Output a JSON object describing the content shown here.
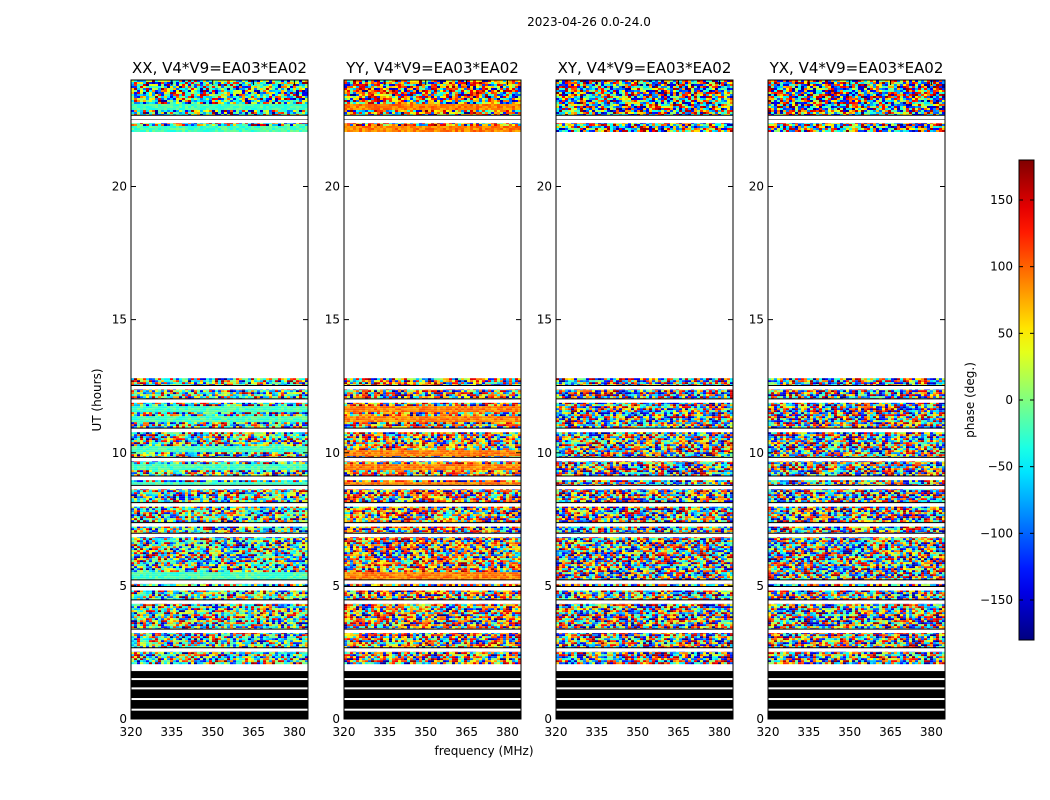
{
  "chart_data": {
    "type": "heatmap",
    "suptitle": "2023-04-26 0.0-24.0",
    "xlabel": "frequency (MHz)",
    "ylabel": "UT (hours)",
    "xlim": [
      320,
      385
    ],
    "ylim": [
      0,
      24
    ],
    "xticks": [
      320,
      335,
      350,
      365,
      380
    ],
    "yticks": [
      0,
      5,
      10,
      15,
      20
    ],
    "panels": [
      {
        "title": "XX, V4*V9=EA03*EA02",
        "bias_phase": -20,
        "coherent_rows": [
          5.4,
          8.8,
          9.5,
          10.2,
          11.3,
          11.7,
          22.2,
          23.0
        ]
      },
      {
        "title": "YY, V4*V9=EA03*EA02",
        "bias_phase": 90,
        "coherent_rows": [
          5.4,
          8.8,
          9.5,
          10.0,
          11.3,
          11.7,
          22.2,
          23.0
        ]
      },
      {
        "title": "XY, V4*V9=EA03*EA02",
        "bias_phase": null,
        "coherent_rows": []
      },
      {
        "title": "YX, V4*V9=EA03*EA02",
        "bias_phase": null,
        "coherent_rows": []
      }
    ],
    "data_segments_hours": [
      {
        "from": 0.0,
        "to": 1.8,
        "kind": "zero"
      },
      {
        "from": 2.1,
        "to": 12.8,
        "kind": "data"
      },
      {
        "from": 22.1,
        "to": 24.0,
        "kind": "data"
      }
    ],
    "flag_gaps_hours": [
      2.6,
      3.3,
      4.4,
      4.9,
      5.15,
      6.9,
      7.3,
      8.05,
      8.7,
      9.05,
      9.75,
      10.85,
      11.95,
      12.45,
      22.45,
      22.6
    ],
    "colorbar": {
      "label": "phase (deg.)",
      "range": [
        -180,
        180
      ],
      "ticks": [
        -150,
        -100,
        -50,
        0,
        50,
        100,
        150
      ],
      "colormap": "jet"
    }
  }
}
